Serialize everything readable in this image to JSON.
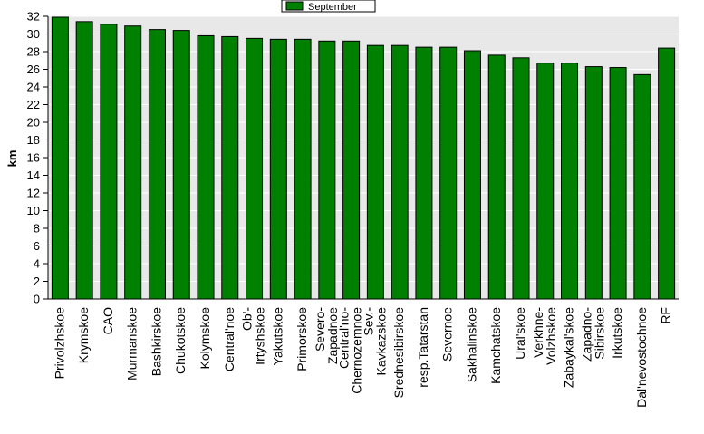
{
  "chart_data": {
    "type": "bar",
    "ylabel": "km",
    "xlabel": "",
    "ylim": [
      0,
      32
    ],
    "y_ticks": [
      0,
      2,
      4,
      6,
      8,
      10,
      12,
      14,
      16,
      18,
      20,
      22,
      24,
      26,
      28,
      30,
      32
    ],
    "grid": true,
    "legend_position": "top-center",
    "bar_color": "#008000",
    "plot_background": "#e8e8e8",
    "categories": [
      "Privolzhskoe",
      "Krymskoe",
      "CAO",
      "Murmanskoe",
      "Bashkirskoe",
      "Chukotskoe",
      "Kolymskoe",
      "Central'noe",
      "Ob'-\nIrtyshskoe",
      "Yakutskoe",
      "Primorskoe",
      "Severo-\nZapadnoe",
      "Central'no-\nChernozemnoe",
      "Sev.-\nKavkazskoe",
      "Srednesibirskoe",
      "resp.Tatarstan",
      "Severnoe",
      "Sakhalinskoe",
      "Kamchatskoe",
      "Ural'skoe",
      "Verkhne-\nVolzhskoe",
      "Zabaykal'skoe",
      "Zapadno-\nSibirskoe",
      "Irkutskoe",
      "Dal'nevostochnoe",
      "RF"
    ],
    "series": [
      {
        "name": "September",
        "values": [
          31.9,
          31.4,
          31.1,
          30.9,
          30.5,
          30.4,
          29.8,
          29.7,
          29.5,
          29.4,
          29.4,
          29.2,
          29.2,
          28.7,
          28.7,
          28.5,
          28.5,
          28.1,
          27.6,
          27.3,
          26.7,
          26.7,
          26.3,
          26.2,
          25.4,
          28.4
        ]
      }
    ]
  }
}
